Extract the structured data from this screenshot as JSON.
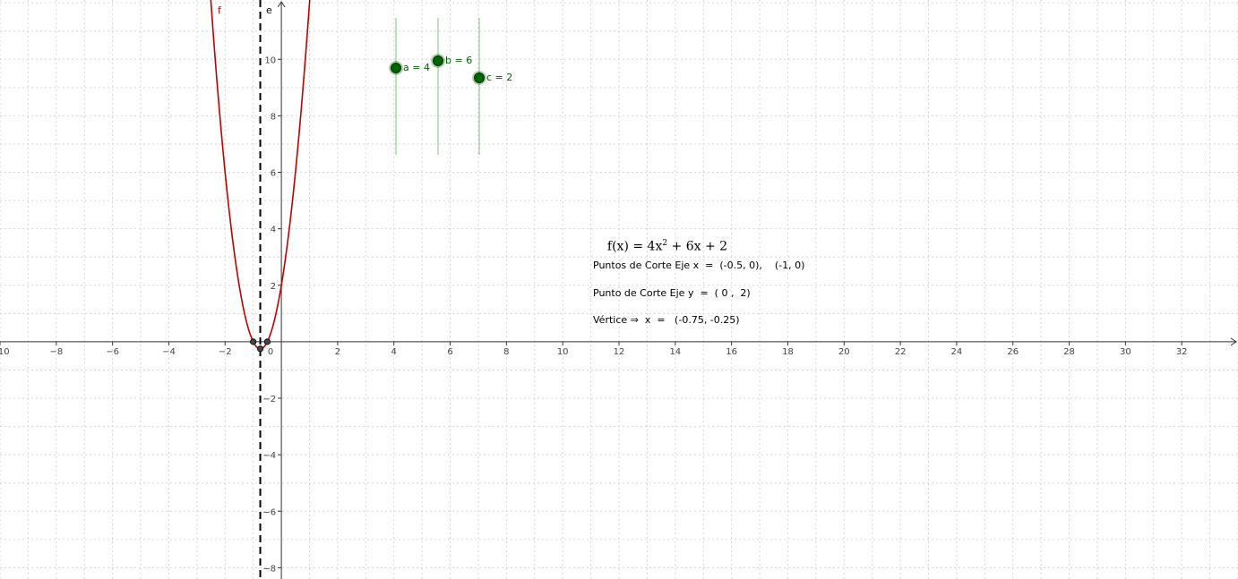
{
  "graphics": {
    "x_range": [
      -10.0,
      34.0
    ],
    "y_range": [
      -8.4,
      12.1
    ],
    "x_tick_step": 2,
    "y_tick_step": 2,
    "grid": true,
    "colors": {
      "grid": "#d6d6d6",
      "axis": "#333333",
      "curve": "#c00000",
      "slider": "#006400",
      "slider_track": "#7fbf7f",
      "asymptote": "#000000"
    }
  },
  "labels": {
    "function_name": "f",
    "vertical_line_name": "e"
  },
  "function": {
    "a": 4,
    "b": 6,
    "c": 2,
    "formula_prefix": "f(x) = 4x",
    "formula_exponent": "2",
    "formula_suffix": " + 6x + 2"
  },
  "axis_of_symmetry_x": -0.75,
  "intercept_points": [
    {
      "x": -1,
      "y": 0
    },
    {
      "x": -0.75,
      "y": -0.25
    },
    {
      "x": -0.5,
      "y": 0
    }
  ],
  "sliders": [
    {
      "name": "a",
      "label": "a = 4",
      "value": 4
    },
    {
      "name": "b",
      "label": "b = 6",
      "value": 6
    },
    {
      "name": "c",
      "label": "c = 2",
      "value": 2
    }
  ],
  "info": {
    "x_intercepts": "Puntos de Corte Eje x  =  (-0.5, 0),    (-1, 0)",
    "y_intercept": "Punto de Corte Eje y  =  ( 0 ,  2)",
    "vertex": "Vértice ⇒  x  =   (-0.75, -0.25)"
  }
}
